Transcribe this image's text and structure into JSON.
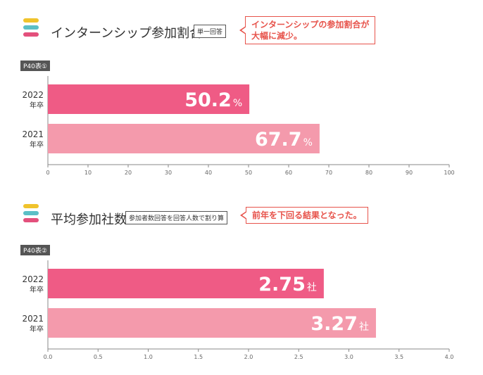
{
  "sections": [
    {
      "title": "インターンシップ参加割合",
      "note": "単一回答",
      "callout": [
        "インターンシップの参加割合が",
        "大幅に減少。"
      ],
      "tag": "P40表①",
      "icon_colors": [
        "#f0c32c",
        "#5bbfc6",
        "#e3507c"
      ]
    },
    {
      "title": "平均参加社数",
      "note": "参加者数回答を回答人数で割り算",
      "callout": [
        "前年を下回る結果となった。"
      ],
      "tag": "P40表②",
      "icon_colors": [
        "#f0c32c",
        "#5bbfc6",
        "#e3507c"
      ]
    }
  ],
  "chart_data": [
    {
      "type": "bar",
      "orientation": "horizontal",
      "title": "インターンシップ参加割合",
      "categories": [
        [
          "2022",
          "年卒"
        ],
        [
          "2021",
          "年卒"
        ]
      ],
      "values": [
        50.2,
        67.7
      ],
      "value_labels": [
        "50.2",
        "67.7"
      ],
      "unit": "%",
      "xlim": [
        0,
        100
      ],
      "ticks": [
        0,
        10,
        20,
        30,
        40,
        50,
        60,
        70,
        80,
        90,
        100
      ],
      "tick_labels": [
        "0",
        "10",
        "20",
        "30",
        "40",
        "50",
        "60",
        "70",
        "80",
        "90",
        "100"
      ],
      "colors": [
        "#ef5b85",
        "#f49aac"
      ]
    },
    {
      "type": "bar",
      "orientation": "horizontal",
      "title": "平均参加社数",
      "categories": [
        [
          "2022",
          "年卒"
        ],
        [
          "2021",
          "年卒"
        ]
      ],
      "values": [
        2.75,
        3.27
      ],
      "value_labels": [
        "2.75",
        "3.27"
      ],
      "unit": "社",
      "xlim": [
        0,
        4
      ],
      "ticks": [
        0,
        0.5,
        1,
        1.5,
        2,
        2.5,
        3,
        3.5,
        4
      ],
      "tick_labels": [
        "0.0",
        "0.5",
        "1.0",
        "1.5",
        "2.0",
        "2.5",
        "3.0",
        "3.5",
        "4.0"
      ],
      "colors": [
        "#ef5b85",
        "#f49aac"
      ]
    }
  ]
}
